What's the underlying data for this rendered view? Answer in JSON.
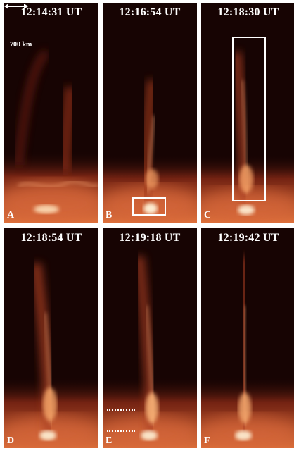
{
  "panels": [
    {
      "label": "A",
      "time": "12:14:31 UT"
    },
    {
      "label": "B",
      "time": "12:16:54 UT"
    },
    {
      "label": "C",
      "time": "12:18:30 UT"
    },
    {
      "label": "D",
      "time": "12:18:54 UT"
    },
    {
      "label": "E",
      "time": "12:19:18 UT"
    },
    {
      "label": "F",
      "time": "12:19:42 UT"
    }
  ],
  "scale_bar": {
    "label": "700 km"
  },
  "colors": {
    "background": "#170403",
    "glow": "#f07a3a",
    "bright": "#fff2cc",
    "annotation": "#ffffff"
  }
}
